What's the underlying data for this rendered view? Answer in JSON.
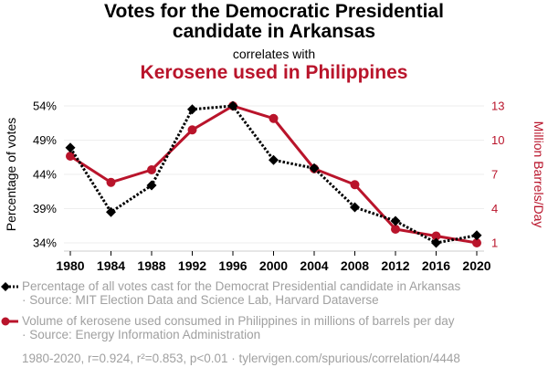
{
  "header": {
    "title_line1": "Votes for the Democratic Presidential",
    "title_line2": "candidate in Arkansas",
    "connector": "correlates with",
    "title2": "Kerosene used in Philippines"
  },
  "colors": {
    "series1": "#000000",
    "series2": "#b9142b",
    "grid": "#eeeeee",
    "legend_text": "#a0a0a0"
  },
  "legend": [
    {
      "label": "Percentage of all votes cast for the Democrat Presidential candidate in Arkansas",
      "source": "· Source: MIT Election Data and Science Lab, Harvard Dataverse",
      "marker": "diamond-dotted"
    },
    {
      "label": "Volume of kerosene used consumed in Philippines in millions of barrels per day",
      "source": "· Source: Energy Information Administration",
      "marker": "circle-solid"
    }
  ],
  "footer": "1980-2020, r=0.924, r²=0.853, p<0.01 · tylervigen.com/spurious/correlation/4448",
  "chart_data": {
    "type": "line",
    "x": [
      1980,
      1984,
      1988,
      1992,
      1996,
      2000,
      2004,
      2008,
      2012,
      2016,
      2020
    ],
    "xticks": [
      "1980",
      "1984",
      "1988",
      "1992",
      "1996",
      "2000",
      "2004",
      "2008",
      "2012",
      "2016",
      "2020"
    ],
    "ylabel": "Percentage of votes",
    "ylabel_right": "Million Barrels/Day",
    "ylim": [
      34,
      54
    ],
    "ylim_right": [
      1,
      13
    ],
    "yticks": [
      {
        "value": 54,
        "label": "54%"
      },
      {
        "value": 49,
        "label": "49%"
      },
      {
        "value": 44,
        "label": "44%"
      },
      {
        "value": 39,
        "label": "39%"
      },
      {
        "value": 34,
        "label": "34%"
      }
    ],
    "yticks_right": [
      {
        "value": 13,
        "label": "13"
      },
      {
        "value": 10,
        "label": "10"
      },
      {
        "value": 7,
        "label": "7"
      },
      {
        "value": 4,
        "label": "4"
      },
      {
        "value": 1,
        "label": "1"
      }
    ],
    "grid": true,
    "series": [
      {
        "name": "Votes for the Democratic Presidential candidate in Arkansas",
        "axis": "left",
        "style": "dotted",
        "marker": "diamond",
        "values": [
          47.9,
          38.5,
          42.4,
          53.5,
          54.0,
          46.1,
          44.9,
          39.2,
          37.2,
          34.0,
          35.1
        ]
      },
      {
        "name": "Kerosene used in Philippines",
        "axis": "right",
        "style": "solid",
        "marker": "circle",
        "values": [
          8.6,
          6.3,
          7.4,
          10.9,
          13.0,
          11.9,
          7.5,
          6.1,
          2.2,
          1.6,
          1.0
        ]
      }
    ]
  }
}
